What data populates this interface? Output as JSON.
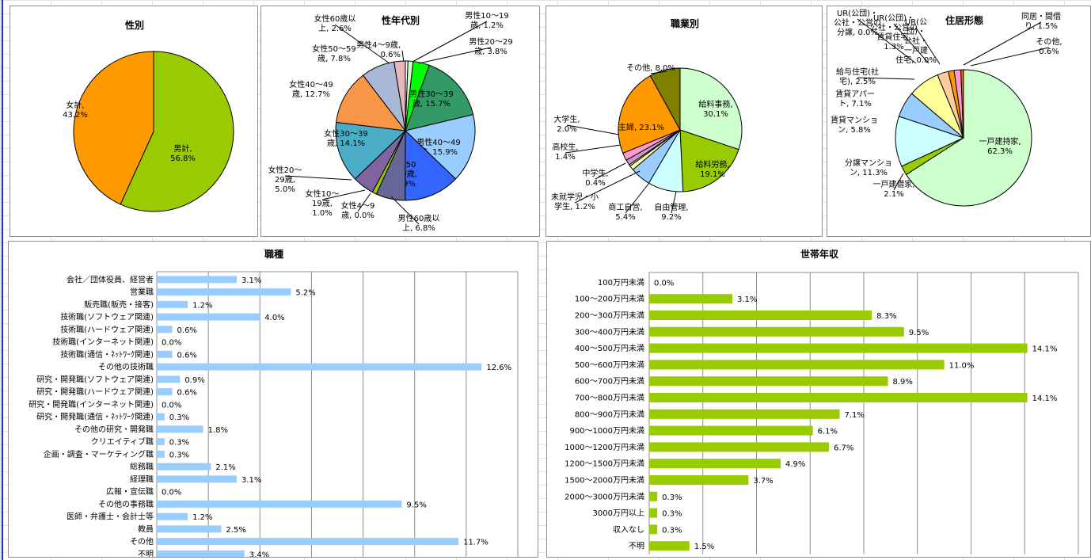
{
  "charts": [
    {
      "id": "gender",
      "chart_data": {
        "type": "pie",
        "title": "性別",
        "slices": [
          {
            "name": "男計",
            "value": 56.8,
            "label": [
              "男計,",
              "56.8%"
            ],
            "color": "#99cc00"
          },
          {
            "name": "女計",
            "value": 43.2,
            "label": [
              "女計,",
              "43.2%"
            ],
            "color": "#ff9900"
          }
        ]
      }
    },
    {
      "id": "age",
      "chart_data": {
        "type": "pie",
        "title": "性年代別",
        "slices": [
          {
            "name": "男性4～9歳",
            "value": 0.6,
            "label": [
              "男性4～9歳,",
              "0.6%"
            ],
            "color": "#ffffff"
          },
          {
            "name": "男性10～19歳",
            "value": 1.2,
            "label": [
              "男性10～19",
              "歳, 1.2%"
            ],
            "color": "#ccffcc"
          },
          {
            "name": "男性20～29歳",
            "value": 3.8,
            "label": [
              "男性20～29",
              "歳, 3.8%"
            ],
            "color": "#00ff00"
          },
          {
            "name": "男性30～39歳",
            "value": 15.7,
            "label": [
              "男性30～39",
              "歳, 15.7%"
            ],
            "color": "#339966"
          },
          {
            "name": "男性40～49歳",
            "value": 15.9,
            "label": [
              "男性40～49",
              "歳, 15.9%"
            ],
            "color": "#99ccff"
          },
          {
            "name": "男性50～59歳",
            "value": 12.9,
            "label": [
              "男性50",
              "～59歳,",
              "12.9%"
            ],
            "color": "#3366ff"
          },
          {
            "name": "男性60歳以上",
            "value": 6.8,
            "label": [
              "男性60歳以",
              "上, 6.8%"
            ],
            "color": "#666699"
          },
          {
            "name": "女性4～9歳",
            "value": 0.0,
            "label": [
              "女性4～9",
              "歳, 0.0%"
            ],
            "color": "#ccffcc"
          },
          {
            "name": "女性10～19歳",
            "value": 1.0,
            "label": [
              "女性10～",
              "19歳,",
              "1.0%"
            ],
            "color": "#99cc00"
          },
          {
            "name": "女性20～29歳",
            "value": 5.0,
            "label": [
              "女性20～",
              "29歳,",
              "5.0%"
            ],
            "color": "#8064a2"
          },
          {
            "name": "女性30～39歳",
            "value": 14.1,
            "label": [
              "女性30～39",
              "歳, 14.1%"
            ],
            "color": "#4bacc6"
          },
          {
            "name": "女性40～49歳",
            "value": 12.7,
            "label": [
              "女性40～49",
              "歳, 12.7%"
            ],
            "color": "#f79646"
          },
          {
            "name": "女性50～59歳",
            "value": 7.8,
            "label": [
              "女性50～59",
              "歳, 7.8%"
            ],
            "color": "#a9b8d6"
          },
          {
            "name": "女性60歳以上",
            "value": 2.6,
            "label": [
              "女性60歳以",
              "上, 2.6%"
            ],
            "color": "#e6b9b8"
          }
        ]
      }
    },
    {
      "id": "occupation",
      "chart_data": {
        "type": "pie",
        "title": "職業別",
        "slices": [
          {
            "name": "給料事務",
            "value": 30.1,
            "label": [
              "給料事務,",
              "30.1%"
            ],
            "color": "#ccffcc"
          },
          {
            "name": "給料労務",
            "value": 19.1,
            "label": [
              "給料労務,",
              "19.1%"
            ],
            "color": "#99cc00"
          },
          {
            "name": "自由管理",
            "value": 9.2,
            "label": [
              "自由管理,",
              "9.2%"
            ],
            "color": "#ccffff"
          },
          {
            "name": "商工自営",
            "value": 5.4,
            "label": [
              "商工自営,",
              "5.4%"
            ],
            "color": "#99ccff"
          },
          {
            "name": "未就学児・小学生",
            "value": 1.2,
            "label": [
              "未就学児・小",
              "学生, 1.2%"
            ],
            "color": "#ffff99"
          },
          {
            "name": "中学生",
            "value": 0.4,
            "label": [
              "中学生,",
              "0.4%"
            ],
            "color": "#ffffff"
          },
          {
            "name": "高校生",
            "value": 1.4,
            "label": [
              "高校生,",
              "1.4%"
            ],
            "color": "#cc99cc"
          },
          {
            "name": "大学生",
            "value": 2.0,
            "label": [
              "大学生,",
              "2.0%"
            ],
            "color": "#ff99cc"
          },
          {
            "name": "主婦",
            "value": 23.1,
            "label": [
              "主婦, 23.1%"
            ],
            "color": "#ff9900"
          },
          {
            "name": "その他",
            "value": 8.0,
            "label": [
              "その他, 8.0%"
            ],
            "color": "#808000"
          }
        ]
      }
    },
    {
      "id": "housing",
      "chart_data": {
        "type": "pie",
        "title": "住居形態",
        "slices": [
          {
            "name": "一戸建持家",
            "value": 62.3,
            "label": [
              "一戸建持家,",
              "62.3%"
            ],
            "color": "#ccffcc"
          },
          {
            "name": "一戸建借家",
            "value": 2.1,
            "label": [
              "一戸建借家,",
              "2.1%"
            ],
            "color": "#99cc00"
          },
          {
            "name": "分譲マンション",
            "value": 11.3,
            "label": [
              "分譲マンショ",
              "ン, 11.3%"
            ],
            "color": "#ccffff"
          },
          {
            "name": "賃貸マンション",
            "value": 5.8,
            "label": [
              "賃貸マンショ",
              "ン, 5.8%"
            ],
            "color": "#99ccff"
          },
          {
            "name": "賃貸アパート",
            "value": 7.1,
            "label": [
              "賃貸アパー",
              "ト, 7.1%"
            ],
            "color": "#ffff99"
          },
          {
            "name": "給与住宅(社宅)",
            "value": 2.5,
            "label": [
              "給与住宅(社",
              "宅), 2.5%"
            ],
            "color": "#ffcc99"
          },
          {
            "name": "UR(公団)・公社・公営の分譲",
            "value": 0.0,
            "label": [
              "UR(公団)・",
              "公社・公営の",
              "分譲, 0.0%"
            ],
            "color": "#ffffff"
          },
          {
            "name": "UR(公団)・公社・公営の賃貸住宅",
            "value": 1.3,
            "label": [
              "UR(公団)・",
              "公社・公営の",
              "賃貸住宅,",
              "1.3%"
            ],
            "color": "#ff9900"
          },
          {
            "name": "UR(公団)・公社・公営の一戸建住宅",
            "value": 0.0,
            "label": [
              "UR(公",
              "団)・",
              "公社・",
              "一戸建",
              "住宅, 0.0%"
            ],
            "color": "#ffffff"
          },
          {
            "name": "同居・間借り",
            "value": 1.5,
            "label": [
              "同居・間借",
              "り, 1.5%"
            ],
            "color": "#ff99cc"
          },
          {
            "name": "その他",
            "value": 0.6,
            "label": [
              "その他,",
              "0.6%"
            ],
            "color": "#ff6600"
          }
        ]
      }
    },
    {
      "id": "job",
      "chart_data": {
        "type": "bar",
        "orientation": "horizontal",
        "title": "職種",
        "color": "#99ccff",
        "xlim": [
          0,
          14
        ],
        "categories": [
          "会社／団体役員、経営者",
          "営業職",
          "販売職(販売・接客)",
          "技術職(ソフトウェア関連)",
          "技術職(ハードウェア関連)",
          "技術職(インターネット関連)",
          "技術職(通信・ﾈｯﾄﾜｰｸ関連)",
          "その他の技術職",
          "研究・開発職(ソフトウェア関連)",
          "研究・開発職(ハードウェア関連)",
          "研究・開発職(インターネット関連)",
          "研究・開発職(通信・ﾈｯﾄﾜｰｸ関連)",
          "その他の研究・開発職",
          "クリエイティブ職",
          "企画・調査・マーケティング職",
          "総務職",
          "経理職",
          "広報・宣伝職",
          "その他の事務職",
          "医師・弁護士・会計士等",
          "教員",
          "その他",
          "不明"
        ],
        "values": [
          3.1,
          5.2,
          1.2,
          4.0,
          0.6,
          0.0,
          0.6,
          12.6,
          0.9,
          0.6,
          0.0,
          0.3,
          1.8,
          0.3,
          0.3,
          2.1,
          3.1,
          0.0,
          9.5,
          1.2,
          2.5,
          11.7,
          3.4
        ],
        "value_labels": [
          "3.1%",
          "5.2%",
          "1.2%",
          "4.0%",
          "0.6%",
          "0.0%",
          "0.6%",
          "12.6%",
          "0.9%",
          "0.6%",
          "0.0%",
          "0.3%",
          "1.8%",
          "0.3%",
          "0.3%",
          "2.1%",
          "3.1%",
          "0.0%",
          "9.5%",
          "1.2%",
          "2.5%",
          "11.7%",
          "3.4%"
        ]
      }
    },
    {
      "id": "income",
      "chart_data": {
        "type": "bar",
        "orientation": "horizontal",
        "title": "世帯年収",
        "color": "#99cc00",
        "xlim": [
          0,
          16
        ],
        "categories": [
          "100万円未満",
          "100～200万円未満",
          "200～300万円未満",
          "300～400万円未満",
          "400～500万円未満",
          "500～600万円未満",
          "600～700万円未満",
          "700～800万円未満",
          "800～900万円未満",
          "900～1000万円未満",
          "1000～1200万円未満",
          "1200～1500万円未満",
          "1500～2000万円未満",
          "2000～3000万円未満",
          "3000万円以上",
          "収入なし",
          "不明"
        ],
        "values": [
          0.0,
          3.1,
          8.3,
          9.5,
          14.1,
          11.0,
          8.9,
          14.1,
          7.1,
          6.1,
          6.7,
          4.9,
          3.7,
          0.3,
          0.3,
          0.3,
          1.5
        ],
        "value_labels": [
          "0.0%",
          "3.1%",
          "8.3%",
          "9.5%",
          "14.1%",
          "11.0%",
          "8.9%",
          "14.1%",
          "7.1%",
          "6.1%",
          "6.7%",
          "4.9%",
          "3.7%",
          "0.3%",
          "0.3%",
          "0.3%",
          "1.5%"
        ]
      }
    }
  ]
}
